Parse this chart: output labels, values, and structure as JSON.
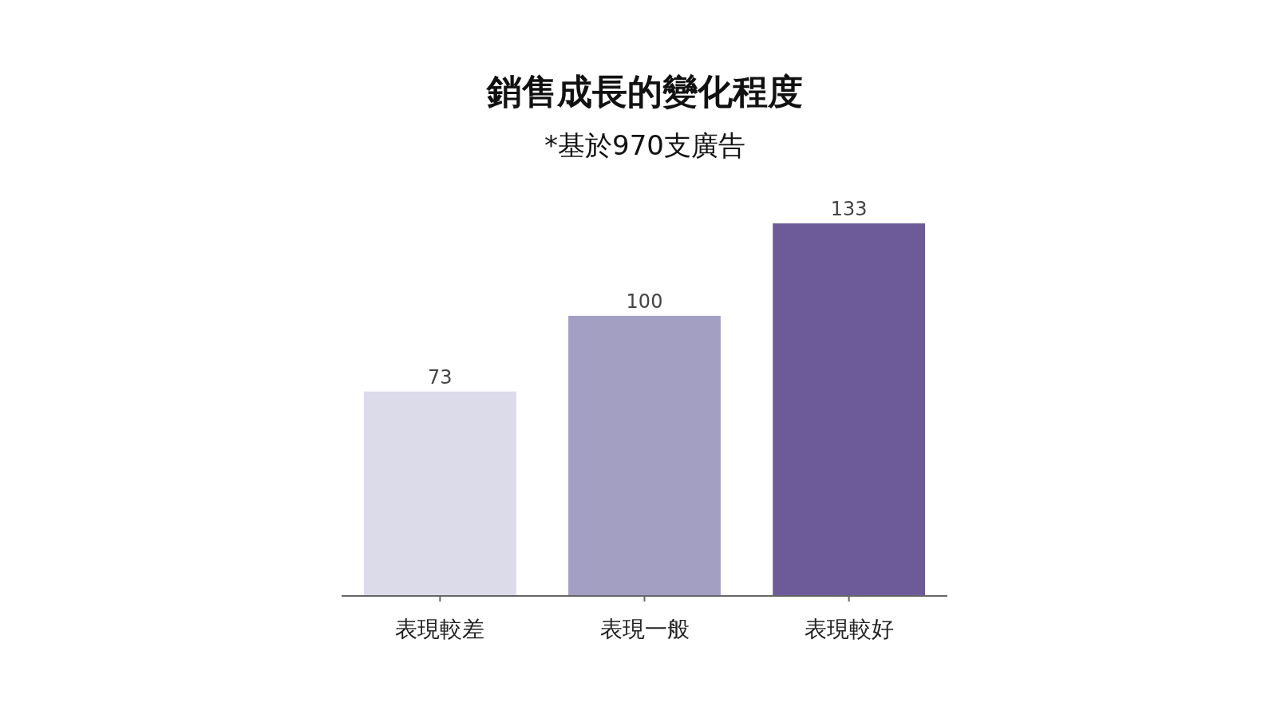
{
  "chart_data": {
    "type": "bar",
    "title": "銷售成長的變化程度",
    "subtitle": "*基於970支廣告",
    "categories": [
      "表現較差",
      "表現一般",
      "表現較好"
    ],
    "values": [
      73,
      100,
      133
    ],
    "colors": [
      "#dcdbea",
      "#a39fc2",
      "#6d5b99"
    ],
    "data_labels": true
  }
}
